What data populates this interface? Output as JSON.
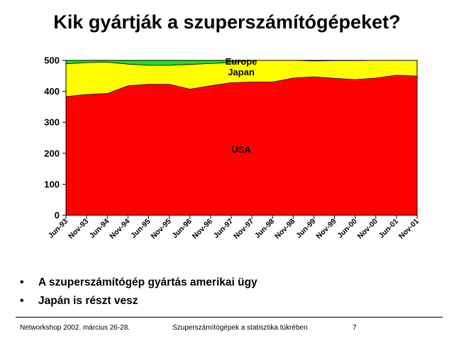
{
  "slide": {
    "title": "Kik gyártják a szuperszámítógépeket?",
    "bullets": [
      "A szuperszámítógép gyártás amerikai ügy",
      "Japán is részt vesz"
    ],
    "footer_left": "Networkshop 2002. március 26-28.",
    "footer_center": "Szuperszámítógépek a statisztika tükrében",
    "page_number": "7"
  },
  "chart_data": {
    "type": "area",
    "stacked": true,
    "title": "",
    "xlabel": "",
    "ylabel": "",
    "ylim": [
      0,
      500
    ],
    "y_ticks": [
      0,
      100,
      200,
      300,
      400,
      500
    ],
    "x_tick_labels": [
      "Jun-93",
      "Nov-93",
      "Jun-94",
      "Nov-94",
      "Jun-95",
      "Nov-95",
      "Jun-96",
      "Nov-96",
      "Jun-97",
      "Nov-97",
      "Jun-98",
      "Nov-98",
      "Jun-99",
      "Nov-99",
      "Jun-00",
      "Nov-00",
      "Jun-01",
      "Nov-01"
    ],
    "grid": false,
    "legend": "labels inside areas",
    "series": [
      {
        "name": "USA",
        "color": "#ff0000",
        "values": [
          383,
          390,
          393,
          418,
          423,
          423,
          407,
          418,
          428,
          430,
          430,
          443,
          447,
          442,
          438,
          443,
          452,
          449
        ]
      },
      {
        "name": "Japan",
        "color": "#ffff00",
        "values": [
          106,
          103,
          101,
          70,
          61,
          61,
          80,
          72,
          65,
          70,
          70,
          57,
          51,
          57,
          61,
          57,
          48,
          51
        ]
      },
      {
        "name": "Europe",
        "color": "#22dd22",
        "values": [
          11,
          7,
          6,
          12,
          16,
          16,
          13,
          10,
          7,
          0,
          0,
          0,
          2,
          1,
          1,
          0,
          0,
          0
        ]
      }
    ]
  }
}
